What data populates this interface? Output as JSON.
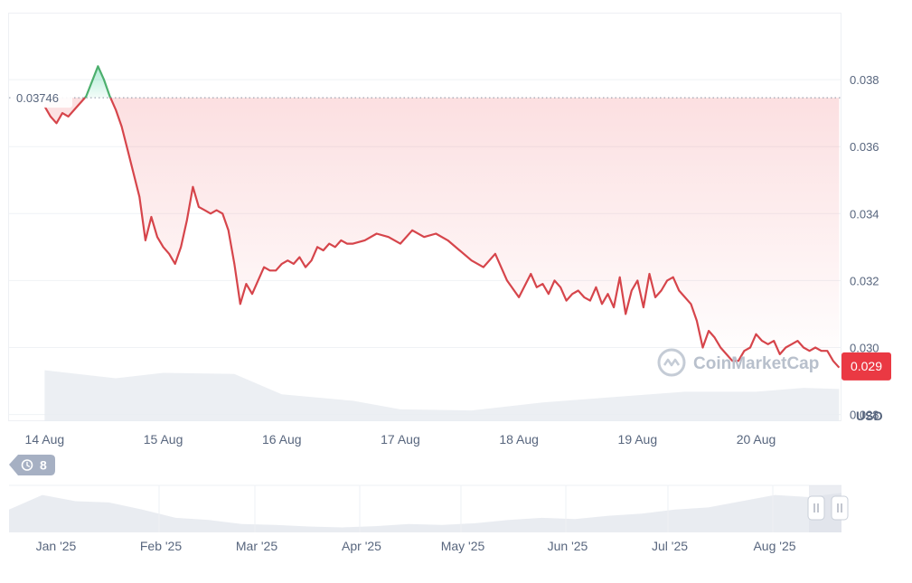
{
  "chart_data": {
    "type": "line",
    "currency_label": "USD",
    "y_ticks": [
      "0.038",
      "0.036",
      "0.034",
      "0.032",
      "0.030",
      "0.028"
    ],
    "ylim": [
      0.0278,
      0.04
    ],
    "x_ticks": [
      "14 Aug",
      "15 Aug",
      "16 Aug",
      "17 Aug",
      "18 Aug",
      "19 Aug",
      "20 Aug"
    ],
    "reference_price": "0.03746",
    "reference_value": 0.03746,
    "current_price": "0.029",
    "current_value": 0.02945,
    "series": [
      {
        "x": [
          0.0,
          0.05,
          0.1,
          0.15,
          0.2,
          0.25,
          0.35,
          0.45,
          0.5,
          0.55,
          0.6,
          0.65,
          0.7,
          0.8,
          0.85,
          0.9,
          0.95,
          1.0,
          1.05,
          1.1,
          1.15,
          1.2,
          1.25,
          1.3,
          1.35,
          1.4,
          1.45,
          1.5,
          1.55,
          1.6,
          1.65,
          1.7,
          1.75,
          1.8,
          1.85,
          1.9,
          1.95,
          2.0,
          2.05,
          2.1,
          2.15,
          2.2,
          2.25,
          2.3,
          2.35,
          2.4,
          2.45,
          2.5,
          2.55,
          2.6,
          2.7,
          2.8,
          2.9,
          3.0,
          3.1,
          3.2,
          3.3,
          3.4,
          3.5,
          3.6,
          3.7,
          3.8,
          3.9,
          4.0,
          4.1,
          4.15,
          4.2,
          4.25,
          4.3,
          4.35,
          4.4,
          4.45,
          4.5,
          4.55,
          4.6,
          4.65,
          4.7,
          4.75,
          4.8,
          4.85,
          4.9,
          4.95,
          5.0,
          5.05,
          5.1,
          5.15,
          5.2,
          5.25,
          5.3,
          5.35,
          5.4,
          5.45,
          5.5,
          5.55,
          5.6,
          5.65,
          5.7,
          5.75,
          5.8,
          5.85,
          5.9,
          5.95,
          6.0,
          6.05,
          6.1,
          6.15,
          6.2,
          6.25,
          6.3,
          6.35,
          6.4,
          6.45,
          6.5,
          6.55,
          6.6,
          6.65,
          6.7
        ],
        "values": [
          0.0372,
          0.0369,
          0.0367,
          0.037,
          0.0369,
          0.0371,
          0.0375,
          0.0384,
          0.038,
          0.0375,
          0.0371,
          0.0366,
          0.0359,
          0.0345,
          0.0332,
          0.0339,
          0.0333,
          0.033,
          0.0328,
          0.0325,
          0.033,
          0.0338,
          0.0348,
          0.0342,
          0.0341,
          0.034,
          0.0341,
          0.034,
          0.0335,
          0.0325,
          0.0313,
          0.0319,
          0.0316,
          0.032,
          0.0324,
          0.0323,
          0.0323,
          0.0325,
          0.0326,
          0.0325,
          0.0327,
          0.0324,
          0.0326,
          0.033,
          0.0329,
          0.0331,
          0.033,
          0.0332,
          0.0331,
          0.0331,
          0.0332,
          0.0334,
          0.0333,
          0.0331,
          0.0335,
          0.0333,
          0.0334,
          0.0332,
          0.0329,
          0.0326,
          0.0324,
          0.0328,
          0.032,
          0.0315,
          0.0322,
          0.0318,
          0.0319,
          0.0316,
          0.032,
          0.0318,
          0.0314,
          0.0316,
          0.0317,
          0.0315,
          0.0314,
          0.0318,
          0.0313,
          0.0316,
          0.0312,
          0.0321,
          0.031,
          0.0317,
          0.032,
          0.0312,
          0.0322,
          0.0315,
          0.0317,
          0.032,
          0.0321,
          0.0317,
          0.0315,
          0.0313,
          0.0308,
          0.03,
          0.0305,
          0.0303,
          0.03,
          0.0298,
          0.0296,
          0.0296,
          0.0299,
          0.03,
          0.0304,
          0.0302,
          0.0301,
          0.0302,
          0.0298,
          0.03,
          0.0301,
          0.0302,
          0.03,
          0.0299,
          0.03,
          0.0299,
          0.0299,
          0.0296,
          0.0294
        ]
      }
    ],
    "volume": [
      {
        "x": 0.0,
        "v": 0.95
      },
      {
        "x": 0.6,
        "v": 0.8
      },
      {
        "x": 1.0,
        "v": 0.9
      },
      {
        "x": 1.6,
        "v": 0.88
      },
      {
        "x": 2.0,
        "v": 0.5
      },
      {
        "x": 2.6,
        "v": 0.38
      },
      {
        "x": 3.0,
        "v": 0.22
      },
      {
        "x": 3.6,
        "v": 0.2
      },
      {
        "x": 4.2,
        "v": 0.35
      },
      {
        "x": 4.8,
        "v": 0.45
      },
      {
        "x": 5.4,
        "v": 0.55
      },
      {
        "x": 6.0,
        "v": 0.55
      },
      {
        "x": 6.4,
        "v": 0.62
      },
      {
        "x": 6.7,
        "v": 0.6
      }
    ],
    "navigator": {
      "labels": [
        "Jan '25",
        "Feb '25",
        "Mar '25",
        "Apr '25",
        "May '25",
        "Jun '25",
        "Jul '25",
        "Aug '25"
      ],
      "values": [
        0.55,
        0.9,
        0.75,
        0.72,
        0.55,
        0.35,
        0.3,
        0.2,
        0.18,
        0.14,
        0.12,
        0.15,
        0.2,
        0.18,
        0.22,
        0.3,
        0.35,
        0.32,
        0.4,
        0.45,
        0.55,
        0.6,
        0.75,
        0.9,
        0.85,
        0.95
      ]
    },
    "grid": true,
    "legend": "none"
  },
  "watermark": "CoinMarketCap",
  "events_badge": "8",
  "colors": {
    "down": "#ea3943",
    "up": "#16c784",
    "line_down": "#d6454b",
    "line_up": "#4caf6d",
    "badge": "#a6b0c3"
  }
}
